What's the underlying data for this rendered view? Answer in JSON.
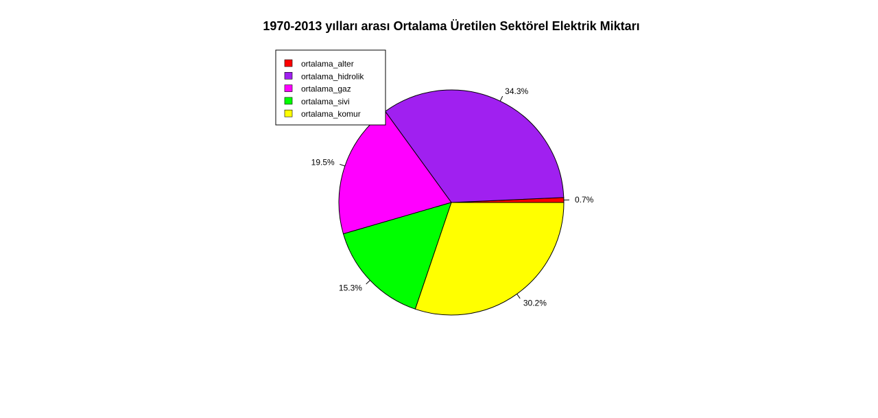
{
  "chart_data": {
    "type": "pie",
    "title": "1970-2013 yılları arası Ortalama Üretilen Sektörel Elektrik Miktarı",
    "direction": "counterclockwise",
    "legend_position": "top-left",
    "slices": [
      {
        "name": "ortalama_alter",
        "value": 0.7,
        "label": "0.7%",
        "color": "#ff0000"
      },
      {
        "name": "ortalama_hidrolik",
        "value": 34.3,
        "label": "34.3%",
        "color": "#a020f0"
      },
      {
        "name": "ortalama_gaz",
        "value": 19.5,
        "label": "19.5%",
        "color": "#ff00ff"
      },
      {
        "name": "ortalama_sivi",
        "value": 15.3,
        "label": "15.3%",
        "color": "#00ff00"
      },
      {
        "name": "ortalama_komur",
        "value": 30.2,
        "label": "30.2%",
        "color": "#ffff00"
      }
    ]
  }
}
